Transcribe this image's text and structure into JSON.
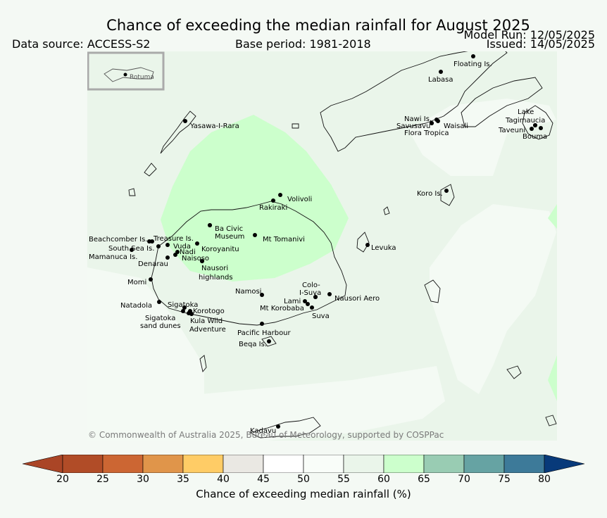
{
  "header": {
    "title": "Chance of exceeding the median rainfall for August 2025",
    "data_source": "Data source: ACCESS-S2",
    "base_period": "Base period: 1981-2018",
    "model_run": "Model Run: 12/05/2025",
    "issued": "Issued: 14/05/2025"
  },
  "map": {
    "inset_label": "Rotuma",
    "copyright": "© Commonwealth of Australia 2025, Bureau of Meteorology, supported by COSPPac",
    "colors": {
      "ocean": "#eaf5ea",
      "light_bin_50_55": "#f4faf4",
      "green_bin_60_65": "#ccffcc",
      "coast": "#111111"
    },
    "places": [
      {
        "name": "Floating Is."
      },
      {
        "name": "Labasa"
      },
      {
        "name": "Yasawa-I-Rara"
      },
      {
        "name": "Nawi Is."
      },
      {
        "name": "Savusavu"
      },
      {
        "name": "Waisali"
      },
      {
        "name": "Flora Tropica"
      },
      {
        "name": "Lake"
      },
      {
        "name": "Tagimaucia"
      },
      {
        "name": "Taveuni"
      },
      {
        "name": "Bouma"
      },
      {
        "name": "Koro Is."
      },
      {
        "name": "Volivoli"
      },
      {
        "name": "Rakiraki"
      },
      {
        "name": "Ba Civic"
      },
      {
        "name": "Museum"
      },
      {
        "name": "Mt Tomanivi"
      },
      {
        "name": "Beachcomber Is."
      },
      {
        "name": "Treasure Is."
      },
      {
        "name": "South Sea Is."
      },
      {
        "name": "Vuda"
      },
      {
        "name": "Koroyanitu"
      },
      {
        "name": "Nadi"
      },
      {
        "name": "Mamanuca Is."
      },
      {
        "name": "Naisoso"
      },
      {
        "name": "Denarau"
      },
      {
        "name": "Nausori"
      },
      {
        "name": "highlands"
      },
      {
        "name": "Levuka"
      },
      {
        "name": "Momi"
      },
      {
        "name": "Namosi"
      },
      {
        "name": "Colo-"
      },
      {
        "name": "I-Suva"
      },
      {
        "name": "Nausori Aero"
      },
      {
        "name": "Lami"
      },
      {
        "name": "Mt Korobaba"
      },
      {
        "name": "Suva"
      },
      {
        "name": "Natadola"
      },
      {
        "name": "Sigatoka"
      },
      {
        "name": "Korotogo"
      },
      {
        "name": "Sigatoka"
      },
      {
        "name": "sand dunes"
      },
      {
        "name": "Kula Wild"
      },
      {
        "name": "Adventure"
      },
      {
        "name": "Pacific Harbour"
      },
      {
        "name": "Beqa Is."
      },
      {
        "name": "Kadavu"
      }
    ]
  },
  "colorbar": {
    "label": "Chance of exceeding median rainfall (%)",
    "ticks": [
      "20",
      "25",
      "30",
      "35",
      "40",
      "45",
      "50",
      "55",
      "60",
      "65",
      "70",
      "75",
      "80"
    ],
    "colors": [
      "#aa4526",
      "#b14c27",
      "#cc6633",
      "#e0954a",
      "#ffcc66",
      "#eae8e3",
      "#ffffff",
      "#f9fdf9",
      "#eaf5ea",
      "#ccffcc",
      "#99ccb3",
      "#66a3a3",
      "#3d7a99",
      "#083a7a"
    ]
  }
}
